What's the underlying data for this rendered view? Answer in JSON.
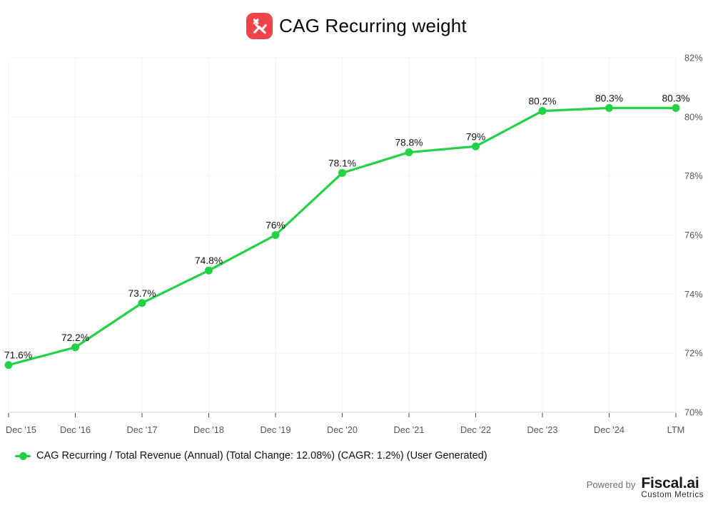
{
  "header": {
    "title": "CAG Recurring weight"
  },
  "chart_data": {
    "type": "line",
    "title": "CAG Recurring weight",
    "categories": [
      "Dec '15",
      "Dec '16",
      "Dec '17",
      "Dec '18",
      "Dec '19",
      "Dec '20",
      "Dec '21",
      "Dec '22",
      "Dec '23",
      "Dec '24",
      "LTM"
    ],
    "series": [
      {
        "name": "CAG Recurring / Total Revenue (Annual) (Total Change: 12.08%) (CAGR: 1.2%) (User Generated)",
        "values": [
          71.6,
          72.2,
          73.7,
          74.8,
          76,
          78.1,
          78.8,
          79,
          80.2,
          80.3,
          80.3
        ],
        "point_labels": [
          "71.6%",
          "72.2%",
          "73.7%",
          "74.8%",
          "76%",
          "78.1%",
          "78.8%",
          "79%",
          "80.2%",
          "80.3%",
          "80.3%"
        ]
      }
    ],
    "xlabel": "",
    "ylabel": "",
    "ylim": [
      70,
      82
    ],
    "ytick_step": 2,
    "ytick_labels": [
      "70%",
      "72%",
      "74%",
      "76%",
      "78%",
      "80%",
      "82%"
    ],
    "yaxis_position": "right",
    "grid": true,
    "legend_position": "bottom-left"
  },
  "legend": {
    "label": "CAG Recurring / Total Revenue (Annual) (Total Change: 12.08%) (CAGR: 1.2%) (User Generated)"
  },
  "footer": {
    "powered_by": "Powered by",
    "brand": "Fiscal.ai",
    "brand_sub": "Custom Metrics"
  },
  "colors": {
    "series_line": "#22d146",
    "icon_bg": "#ee4348",
    "icon_glyph": "#ffffff",
    "gridline": "#f2f2f2",
    "axis_line": "#dedede",
    "tick": "#4a4a4a",
    "axis_text": "#55565a",
    "data_label_text": "#141414",
    "title_text": "#060606"
  }
}
